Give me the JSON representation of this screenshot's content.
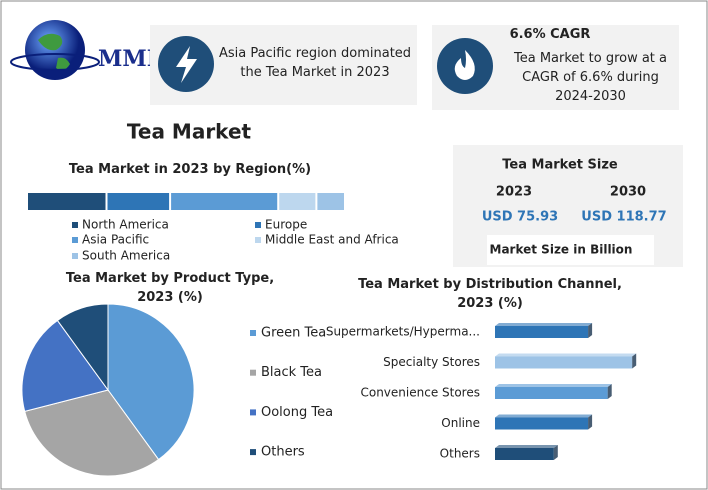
{
  "logo": "MMR",
  "title": "Tea Market",
  "header": {
    "highlights": [
      {
        "text": "Asia Pacific region dominated the Tea Market in 2023"
      },
      {
        "title": "6.6% CAGR",
        "text": "Tea Market to grow at a CAGR of 6.6% during 2024-2030"
      }
    ]
  },
  "market_size": {
    "title": "Tea Market Size",
    "years": [
      "2023",
      "2030"
    ],
    "values": [
      "USD 75.93",
      "USD 118.77"
    ],
    "note": "Market Size in Billion"
  },
  "chart_data": [
    {
      "type": "stack",
      "title": "Tea Market in 2023 by Region(%)",
      "categories": [
        "North America",
        "Europe",
        "Asia Pacific",
        "Middle East and Africa",
        "South America"
      ],
      "values": [
        25,
        20,
        34,
        12,
        9
      ],
      "colors": [
        "#1f4e79",
        "#2e75b6",
        "#5b9bd5",
        "#bdd7ee",
        "#9dc3e6"
      ]
    },
    {
      "type": "pie",
      "title": "Tea Market by Product Type, 2023 (%)",
      "categories": [
        "Green Tea",
        "Black Tea",
        "Oolong Tea",
        "Others"
      ],
      "values": [
        40,
        31,
        19,
        10
      ],
      "colors": [
        "#5b9bd5",
        "#a5a5a5",
        "#4472c4",
        "#1f4e79"
      ]
    },
    {
      "type": "bar",
      "title": "Tea Market by Distribution Channel, 2023 (%)",
      "categories": [
        "Supermarkets/Hyperma...",
        "Specialty Stores",
        "Convenience Stores",
        "Online",
        "Others"
      ],
      "values": [
        19,
        28,
        23,
        19,
        12
      ],
      "colors": [
        "#2e75b6",
        "#9dc3e6",
        "#5b9bd5",
        "#2e75b6",
        "#1f4e79"
      ]
    }
  ]
}
